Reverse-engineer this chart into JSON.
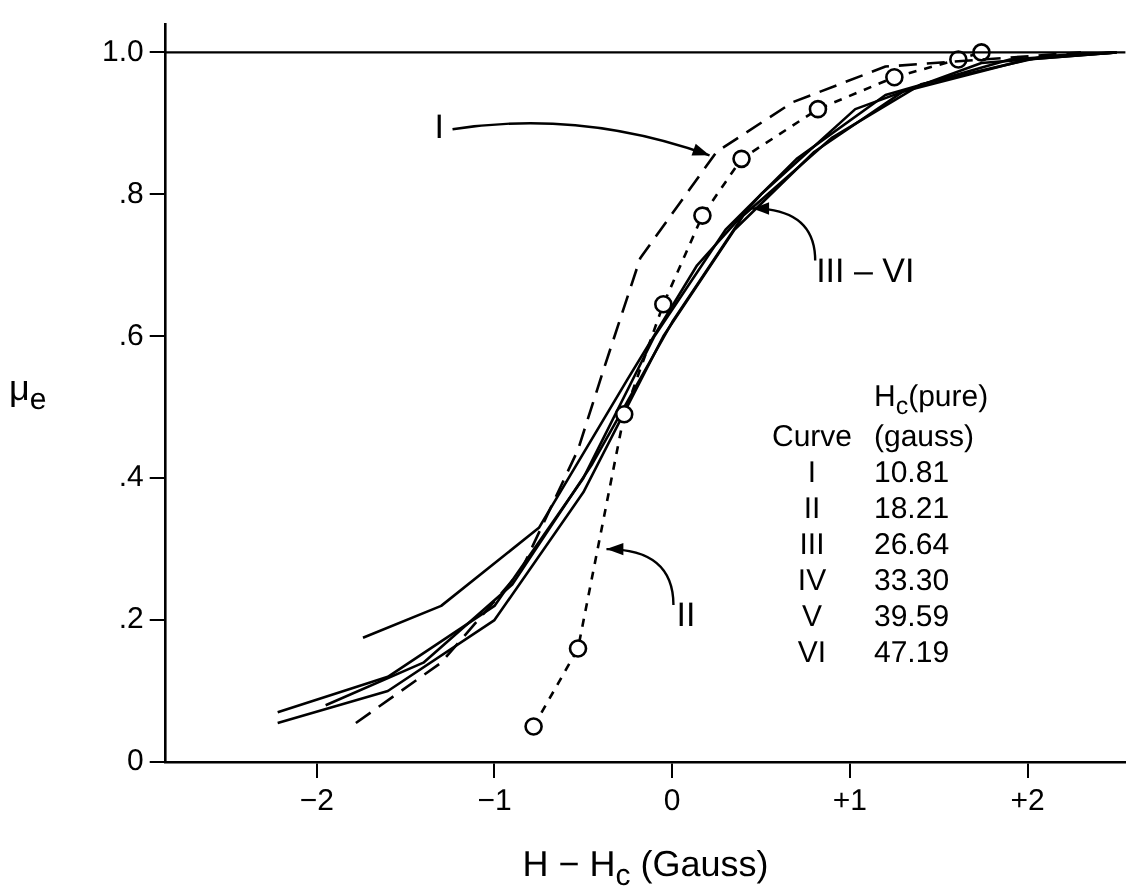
{
  "chart_data": {
    "type": "line",
    "xlabel": "H − H$_{c}$ (Gauss)",
    "ylabel": "μ$_{e}$",
    "xlim": [
      -2.85,
      2.55
    ],
    "ylim": [
      0,
      1.04
    ],
    "xticks": [
      {
        "value": -2,
        "label": "−2"
      },
      {
        "value": -1,
        "label": "−1"
      },
      0,
      {
        "value": 1,
        "label": "+1"
      },
      {
        "value": 2,
        "label": "+2"
      }
    ],
    "yticks": [
      0,
      {
        "value": 0.2,
        "label": ".2"
      },
      {
        "value": 0.4,
        "label": ".4"
      },
      {
        "value": 0.6,
        "label": ".6"
      },
      {
        "value": 0.8,
        "label": ".8"
      },
      {
        "value": 1,
        "label": "1.0"
      }
    ],
    "grid": false,
    "legend": false,
    "ref_lines": [
      {
        "axis": "y",
        "value": 1,
        "color": "#000000"
      }
    ],
    "series": [
      {
        "color": "#000000",
        "line_style": "dashed",
        "marker": "none",
        "x": [
          -1.78,
          -1.3,
          -0.85,
          -0.53,
          -0.39,
          -0.18,
          0.25,
          0.68,
          1.2,
          2.3
        ],
        "values": [
          0.055,
          0.14,
          0.27,
          0.44,
          0.55,
          0.71,
          0.86,
          0.93,
          0.98,
          1.0
        ]
      },
      {
        "color": "#000000",
        "line_style": "dotted",
        "marker": "circle",
        "x": [
          -0.78,
          -0.53,
          -0.27,
          -0.05,
          0.17,
          0.39,
          0.82,
          1.25,
          1.61,
          1.74
        ],
        "values": [
          0.05,
          0.16,
          0.49,
          0.645,
          0.77,
          0.85,
          0.92,
          0.965,
          0.99,
          1.0
        ]
      },
      {
        "color": "#000000",
        "line_style": "solid",
        "marker": "none",
        "x": [
          -1.74,
          -1.3,
          -0.75,
          -0.25,
          0.14,
          0.5,
          1.03,
          1.74,
          2.5
        ],
        "values": [
          0.175,
          0.22,
          0.33,
          0.54,
          0.7,
          0.8,
          0.92,
          0.985,
          1.0
        ]
      },
      {
        "color": "#000000",
        "line_style": "solid",
        "marker": "none",
        "x": [
          -2.22,
          -1.6,
          -1.0,
          -0.5,
          -0.1,
          0.3,
          0.7,
          1.2,
          1.9,
          2.5
        ],
        "values": [
          0.07,
          0.12,
          0.22,
          0.4,
          0.6,
          0.75,
          0.85,
          0.94,
          0.99,
          1.0
        ]
      },
      {
        "color": "#000000",
        "line_style": "solid",
        "marker": "none",
        "x": [
          -2.22,
          -1.6,
          -1.0,
          -0.5,
          -0.05,
          0.35,
          0.8,
          1.3,
          2.0,
          2.5
        ],
        "values": [
          0.055,
          0.1,
          0.2,
          0.38,
          0.6,
          0.75,
          0.86,
          0.945,
          0.99,
          1.0
        ]
      },
      {
        "color": "#000000",
        "line_style": "solid",
        "marker": "none",
        "x": [
          -1.95,
          -1.4,
          -0.9,
          -0.45,
          0,
          0.4,
          0.9,
          1.4,
          2.1,
          2.5
        ],
        "values": [
          0.08,
          0.14,
          0.25,
          0.42,
          0.62,
          0.77,
          0.88,
          0.955,
          0.995,
          1.0
        ]
      }
    ],
    "annotations": [
      {
        "text": "I",
        "x": 0.21,
        "y": 0.855
      },
      {
        "text": "II",
        "x": -0.37,
        "y": 0.3
      },
      {
        "text": "III – VI",
        "x": 0.45,
        "y": 0.78
      },
      "Curve",
      "H$_{c}$(pure) (gauss)",
      "I",
      "10.81",
      "II",
      "18.21",
      "III",
      "26.64",
      "IV",
      "33.30",
      "V",
      "39.59",
      "VI",
      "47.19"
    ]
  }
}
